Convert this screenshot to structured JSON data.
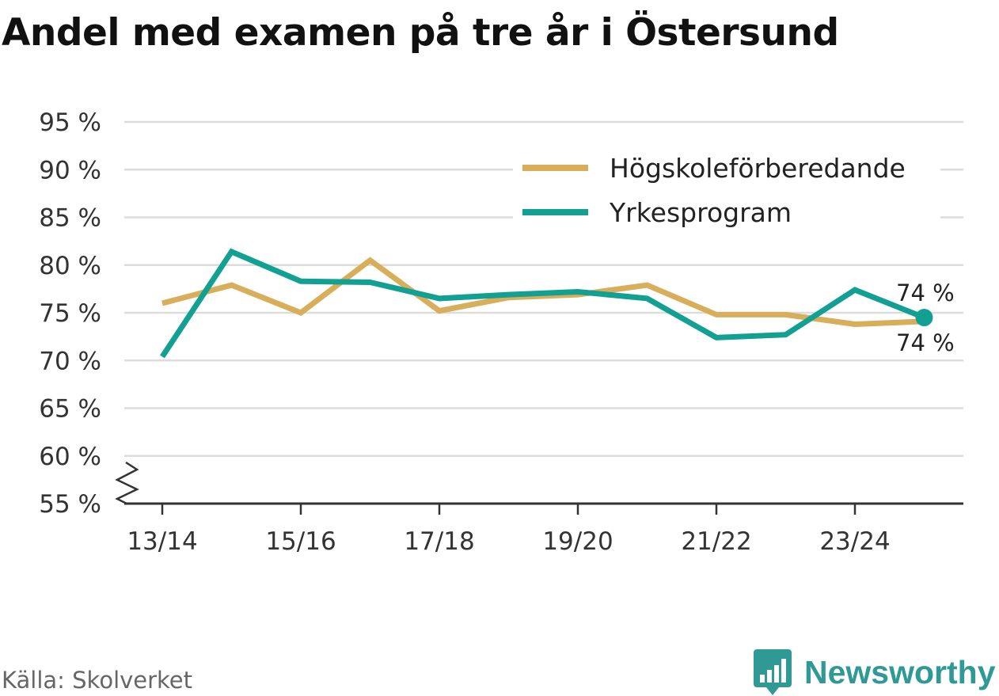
{
  "title": "Andel med examen på tre år i Östersund",
  "source": "Källa: Skolverket",
  "brand": "Newsworthy",
  "colors": {
    "hogskole": "#d9ae5b",
    "yrkes": "#12a093",
    "grid": "#dcdcdc",
    "axis": "#333333",
    "brand": "#2f9a95"
  },
  "chart_data": {
    "type": "line",
    "ylim": [
      55,
      95
    ],
    "y_ticks": [
      95,
      90,
      85,
      80,
      75,
      70,
      65,
      60,
      55
    ],
    "y_tick_labels": [
      "95 %",
      "90 %",
      "85 %",
      "80 %",
      "75 %",
      "70 %",
      "65 %",
      "60 %",
      "55 %"
    ],
    "y_axis_break": true,
    "x": [
      "13/14",
      "14/15",
      "15/16",
      "16/17",
      "17/18",
      "18/19",
      "19/20",
      "20/21",
      "21/22",
      "22/23",
      "23/24",
      "24/25"
    ],
    "x_tick_labels": [
      "13/14",
      "15/16",
      "17/18",
      "19/20",
      "21/22",
      "23/24"
    ],
    "legend_position": "top-right",
    "grid": true,
    "series": [
      {
        "name": "Högskoleförberedande",
        "values": [
          76.0,
          77.9,
          75.0,
          80.5,
          75.2,
          76.6,
          76.9,
          77.9,
          74.8,
          74.8,
          73.8,
          74.1
        ],
        "end_label": "74 %"
      },
      {
        "name": "Yrkesprogram",
        "values": [
          70.4,
          81.4,
          78.3,
          78.2,
          76.5,
          76.9,
          77.2,
          76.5,
          72.4,
          72.7,
          77.4,
          74.5
        ],
        "end_label": "74 %"
      }
    ]
  }
}
